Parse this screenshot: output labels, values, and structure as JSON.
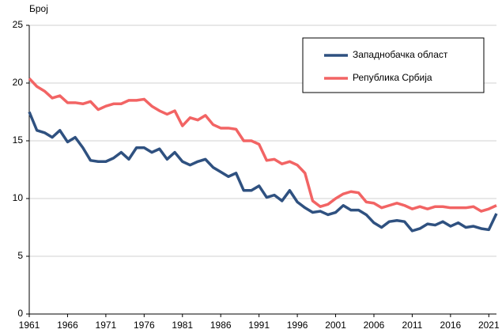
{
  "chart_data": {
    "type": "line",
    "y_axis_label": "Број",
    "x": [
      1961,
      1962,
      1963,
      1964,
      1965,
      1966,
      1967,
      1968,
      1969,
      1970,
      1971,
      1972,
      1973,
      1974,
      1975,
      1976,
      1977,
      1978,
      1979,
      1980,
      1981,
      1982,
      1983,
      1984,
      1985,
      1986,
      1987,
      1988,
      1989,
      1990,
      1991,
      1992,
      1993,
      1994,
      1995,
      1996,
      1997,
      1998,
      1999,
      2000,
      2001,
      2002,
      2003,
      2004,
      2005,
      2006,
      2007,
      2008,
      2009,
      2010,
      2011,
      2012,
      2013,
      2014,
      2015,
      2016,
      2017,
      2018,
      2019,
      2020,
      2021,
      2022
    ],
    "series": [
      {
        "name": "Западнобачка област",
        "color": "#2f5180",
        "values": [
          17.5,
          15.9,
          15.7,
          15.3,
          15.9,
          14.9,
          15.3,
          14.4,
          13.3,
          13.2,
          13.2,
          13.5,
          14.0,
          13.4,
          14.4,
          14.4,
          14.0,
          14.3,
          13.4,
          14.0,
          13.2,
          12.9,
          13.2,
          13.4,
          12.7,
          12.3,
          11.9,
          12.2,
          10.7,
          10.7,
          11.1,
          10.1,
          10.3,
          9.8,
          10.7,
          9.7,
          9.2,
          8.8,
          8.9,
          8.6,
          8.8,
          9.4,
          9.0,
          9.0,
          8.6,
          7.9,
          7.5,
          8.0,
          8.1,
          8.0,
          7.2,
          7.4,
          7.8,
          7.7,
          8.0,
          7.6,
          7.9,
          7.5,
          7.6,
          7.4,
          7.3,
          8.7
        ]
      },
      {
        "name": "Република Србија",
        "color": "#f26464",
        "values": [
          20.4,
          19.7,
          19.3,
          18.7,
          18.9,
          18.3,
          18.3,
          18.2,
          18.4,
          17.7,
          18.0,
          18.2,
          18.2,
          18.5,
          18.5,
          18.6,
          18.0,
          17.6,
          17.3,
          17.6,
          16.3,
          17.0,
          16.8,
          17.2,
          16.4,
          16.1,
          16.1,
          16.0,
          15.0,
          15.0,
          14.7,
          13.3,
          13.4,
          13.0,
          13.2,
          12.9,
          12.2,
          9.8,
          9.3,
          9.5,
          10.0,
          10.4,
          10.6,
          10.5,
          9.7,
          9.6,
          9.2,
          9.4,
          9.6,
          9.4,
          9.1,
          9.3,
          9.1,
          9.3,
          9.3,
          9.2,
          9.2,
          9.2,
          9.3,
          8.9,
          9.1,
          9.4
        ]
      }
    ],
    "xlim": [
      1961,
      2022
    ],
    "xticks": [
      1961,
      1966,
      1971,
      1976,
      1981,
      1986,
      1991,
      1996,
      2001,
      2006,
      2011,
      2016,
      2021
    ],
    "ylim": [
      0,
      25
    ],
    "yticks": [
      0,
      5,
      10,
      15,
      20,
      25
    ],
    "grid": true,
    "legend": "upper right"
  }
}
